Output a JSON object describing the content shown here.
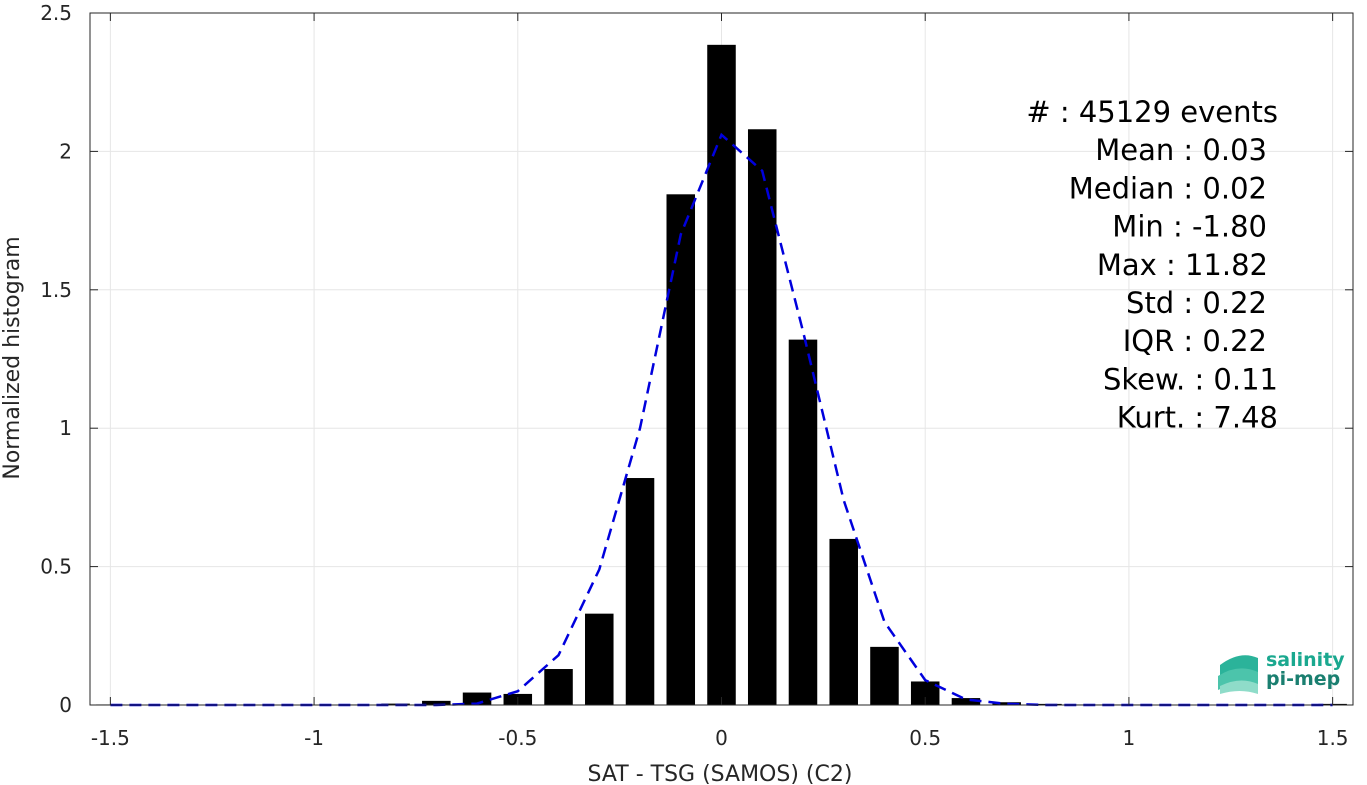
{
  "chart_data": {
    "type": "bar",
    "xlabel": "SAT - TSG (SAMOS) (C2)",
    "ylabel": "Normalized histogram",
    "xlim": [
      -1.55,
      1.55
    ],
    "ylim": [
      0,
      2.5
    ],
    "x_ticks": [
      -1.5,
      -1,
      -0.5,
      0,
      0.5,
      1,
      1.5
    ],
    "x_tick_labels": [
      "-1.5",
      "-1",
      "-0.5",
      "0",
      "0.5",
      "1",
      "1.5"
    ],
    "y_ticks": [
      0,
      0.5,
      1,
      1.5,
      2,
      2.5
    ],
    "y_tick_labels": [
      "0",
      "0.5",
      "1",
      "1.5",
      "2",
      "2.5"
    ],
    "grid": true,
    "bar_width": 0.07,
    "bar_color": "#000000",
    "bars": {
      "x": [
        -1.5,
        -1.4,
        -1.3,
        -1.2,
        -1.1,
        -1.0,
        -0.9,
        -0.8,
        -0.7,
        -0.6,
        -0.5,
        -0.4,
        -0.3,
        -0.2,
        -0.1,
        0.0,
        0.1,
        0.2,
        0.3,
        0.4,
        0.5,
        0.6,
        0.7,
        0.8,
        0.9,
        1.0,
        1.1,
        1.2,
        1.3,
        1.4,
        1.5
      ],
      "values": [
        0.002,
        0.001,
        0.001,
        0.001,
        0.001,
        0.001,
        0.002,
        0.005,
        0.015,
        0.045,
        0.04,
        0.13,
        0.33,
        0.82,
        1.845,
        2.385,
        2.08,
        1.32,
        0.6,
        0.21,
        0.085,
        0.025,
        0.01,
        0.004,
        0.002,
        0.002,
        0.001,
        0.001,
        0.001,
        0.001,
        0.004
      ]
    },
    "fit_curve": {
      "style": "dashed",
      "color": "#0000dd",
      "x": [
        -1.5,
        -1.4,
        -1.3,
        -1.2,
        -1.1,
        -1.0,
        -0.9,
        -0.8,
        -0.7,
        -0.6,
        -0.5,
        -0.4,
        -0.3,
        -0.2,
        -0.1,
        0.0,
        0.1,
        0.2,
        0.3,
        0.4,
        0.5,
        0.6,
        0.7,
        0.8,
        0.9,
        1.0,
        1.1,
        1.2,
        1.3,
        1.4,
        1.5
      ],
      "values": [
        0.0,
        0.0,
        0.0,
        0.0,
        0.0,
        0.0,
        0.0,
        0.0,
        0.0,
        0.005,
        0.05,
        0.18,
        0.49,
        1.0,
        1.7,
        2.06,
        1.93,
        1.35,
        0.74,
        0.3,
        0.09,
        0.02,
        0.004,
        0.0,
        0.0,
        0.0,
        0.0,
        0.0,
        0.0,
        0.0,
        0.0
      ]
    },
    "stats": [
      {
        "label": "#  : 45129 events"
      },
      {
        "label": "Mean : 0.03"
      },
      {
        "label": "Median : 0.02"
      },
      {
        "label": "Min : -1.80"
      },
      {
        "label": "Max : 11.82"
      },
      {
        "label": "Std : 0.22"
      },
      {
        "label": "IQR : 0.22"
      },
      {
        "label": "Skew. : 0.11"
      },
      {
        "label": "Kurt. : 7.48"
      }
    ]
  },
  "logo": {
    "line1": "salinity",
    "line2": "pi-mep",
    "color1": "#1aa88f",
    "color2": "#1a7f70"
  }
}
